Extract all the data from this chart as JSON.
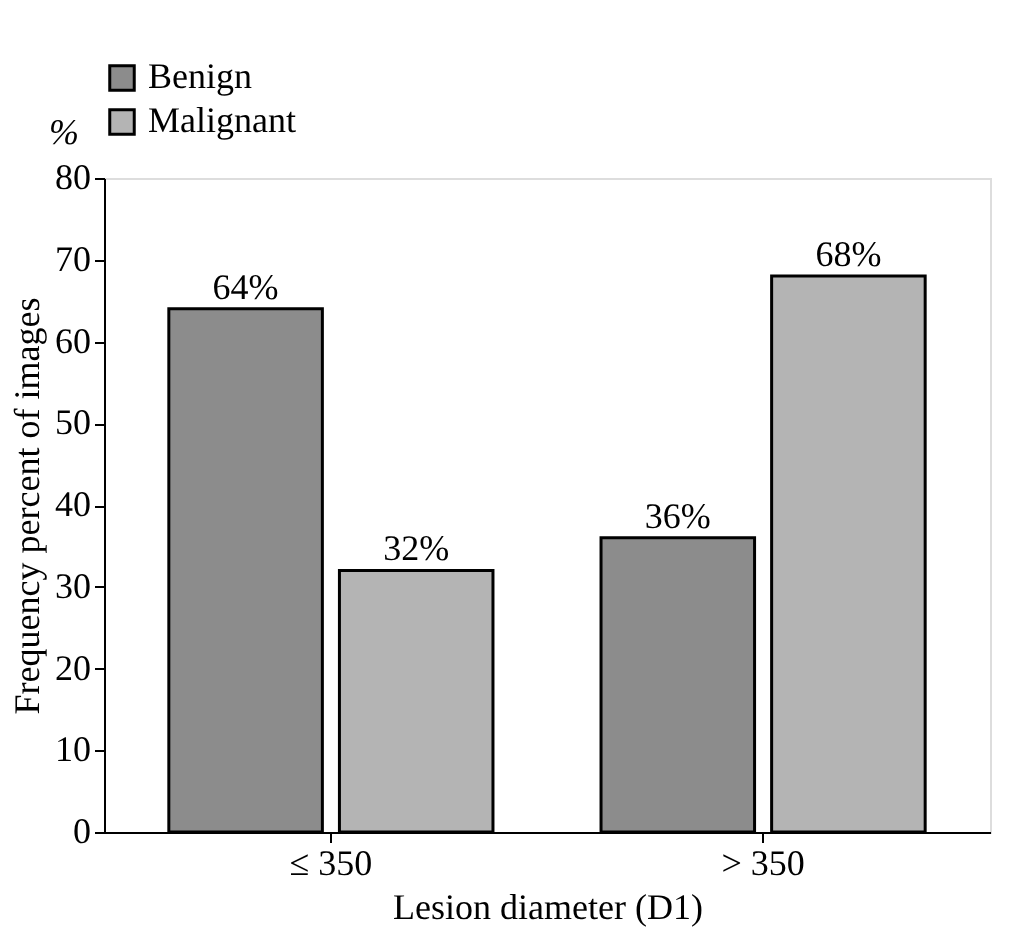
{
  "chart_data": {
    "type": "bar",
    "categories": [
      "≤ 350",
      "> 350"
    ],
    "series": [
      {
        "name": "Benign",
        "color": "#8c8c8c",
        "values": [
          64,
          36
        ],
        "value_labels": [
          "64%",
          "36%"
        ]
      },
      {
        "name": "Malignant",
        "color": "#b4b4b4",
        "values": [
          32,
          68
        ],
        "value_labels": [
          "32%",
          "68%"
        ]
      }
    ],
    "xlabel": "Lesion diameter (D1)",
    "ylabel": "Frequency percent of images",
    "annotations": [
      "%"
    ],
    "ylim": [
      0,
      80
    ],
    "yticks": [
      0,
      10,
      20,
      30,
      40,
      50,
      60,
      70,
      80
    ],
    "grid": false,
    "legend": "top"
  }
}
